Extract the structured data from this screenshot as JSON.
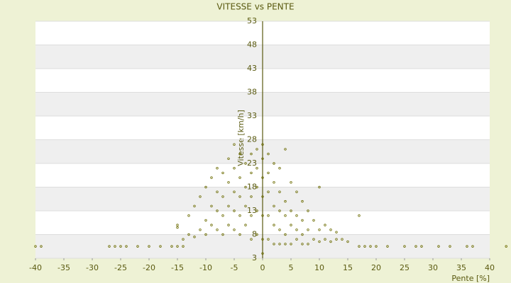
{
  "chart_data": {
    "type": "scatter",
    "title": "VITESSE vs PENTE",
    "x_label": "Pente [%]",
    "y_label": "Vitesse [km/h]",
    "color": "#6b6b00",
    "xlim": [
      -40,
      40
    ],
    "ylim": [
      3,
      53
    ],
    "xticks": [
      -40,
      -35,
      -30,
      -25,
      -20,
      -15,
      -10,
      -5,
      0,
      5,
      10,
      15,
      20,
      25,
      30,
      35,
      40
    ],
    "yticks": [
      3,
      8,
      13,
      18,
      23,
      28,
      33,
      38,
      43,
      48,
      53
    ],
    "x": [
      -40,
      -39,
      -27,
      -26,
      -25,
      -24,
      -22,
      -20,
      -18,
      -16,
      -15,
      -14,
      17,
      18,
      19,
      20,
      22,
      25,
      27,
      28,
      31,
      33,
      36,
      37,
      42.9,
      -15,
      -15,
      -14,
      -13,
      -13,
      -12,
      -12,
      -11,
      -11,
      -10,
      -10,
      -10,
      -9,
      -9,
      -9,
      -8,
      -8,
      -8,
      -8,
      -7,
      -7,
      -7,
      -7,
      -6,
      -6,
      -6,
      -6,
      -5,
      -5,
      -5,
      -5,
      -5,
      -4,
      -4,
      -4,
      -4,
      -4,
      -3,
      -3,
      -3,
      -3,
      -2,
      -2,
      -2,
      -2,
      -2,
      -1,
      -1,
      -1,
      -1,
      -1,
      0,
      0,
      0,
      0,
      0,
      0,
      0,
      1,
      1,
      1,
      1,
      1,
      2,
      2,
      2,
      2,
      2,
      3,
      3,
      3,
      3,
      3,
      4,
      4,
      4,
      4,
      4,
      5,
      5,
      5,
      5,
      6,
      6,
      6,
      6,
      7,
      7,
      7,
      7,
      8,
      8,
      8,
      9,
      9,
      10,
      10,
      10,
      11,
      11,
      12,
      12,
      13,
      13,
      14,
      15,
      17
    ],
    "y": [
      5.5,
      5.5,
      5.5,
      5.5,
      5.5,
      5.5,
      5.5,
      5.5,
      5.5,
      5.5,
      5.5,
      5.5,
      5.5,
      5.5,
      5.5,
      5.5,
      5.5,
      5.5,
      5.5,
      5.5,
      5.5,
      5.5,
      5.5,
      5.5,
      5.5,
      9.5,
      10,
      7,
      8,
      12,
      7.5,
      14,
      9,
      16,
      8,
      11,
      18,
      10,
      14,
      20,
      9,
      13,
      17,
      22,
      8,
      12,
      16,
      21,
      10,
      14,
      19,
      24,
      9,
      13,
      17,
      22,
      27,
      8,
      12,
      16,
      20,
      25,
      10,
      14,
      18,
      23,
      7,
      12,
      16,
      21,
      25,
      8,
      13,
      18,
      22,
      26,
      4,
      7,
      12,
      16,
      20,
      24,
      27,
      7,
      12,
      17,
      21,
      25,
      6,
      10,
      14,
      19,
      23,
      6,
      9,
      13,
      17,
      22,
      6,
      8,
      12,
      15,
      26,
      6,
      10,
      13,
      19,
      7,
      9,
      12,
      17,
      6,
      8,
      11,
      15,
      6,
      9,
      13,
      7,
      11,
      6.5,
      9,
      18,
      7,
      10,
      6.5,
      9,
      7,
      8.5,
      7,
      6.5,
      12
    ]
  }
}
